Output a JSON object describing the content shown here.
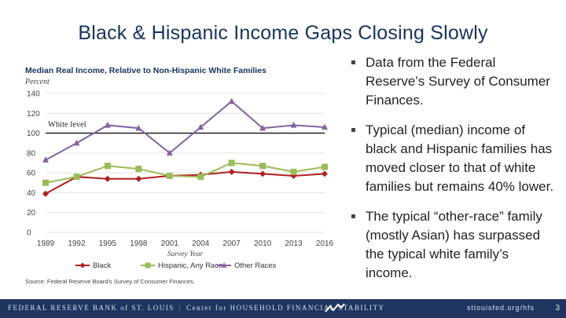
{
  "slide": {
    "title": "Black & Hispanic Income Gaps Closing Slowly",
    "page_number": "3"
  },
  "chart_data": {
    "type": "line",
    "title": "Median Real Income, Relative to Non-Hispanic White Families",
    "ylabel": "Percent",
    "xlabel": "Survey Year",
    "source": "Source: Federal Reserve Board's Survey of Consumer Finances.",
    "reference_line": {
      "label": "White level",
      "value": 100
    },
    "ylim": [
      0,
      140
    ],
    "yticks": [
      0,
      20,
      40,
      60,
      80,
      100,
      120,
      140
    ],
    "categories": [
      "1989",
      "1992",
      "1995",
      "1998",
      "2001",
      "2004",
      "2007",
      "2010",
      "2013",
      "2016"
    ],
    "series": [
      {
        "name": "Black",
        "color": "#b01f1f",
        "marker": "diamond",
        "values": [
          39,
          56,
          54,
          54,
          57,
          58,
          61,
          59,
          57,
          59
        ]
      },
      {
        "name": "Hispanic, Any Race",
        "color": "#9bbb59",
        "marker": "square",
        "values": [
          50,
          56,
          67,
          64,
          57,
          56,
          70,
          67,
          61,
          66
        ]
      },
      {
        "name": "Other Races",
        "color": "#8064a2",
        "marker": "triangle",
        "values": [
          73,
          90,
          108,
          105,
          80,
          106,
          132,
          105,
          108,
          106
        ]
      }
    ]
  },
  "bullets": [
    "Data from the Federal Reserve’s Survey of Consumer Finances.",
    "Typical (median) income of black and Hispanic families has moved closer to that of white families but remains 40% lower.",
    "The typical “other-race” family (mostly Asian) has surpassed the typical white family’s income."
  ],
  "footer": {
    "left_text": "FEDERAL RESERVE BANK of ST. LOUIS",
    "separator": "|",
    "center_text": "Center for HOUSEHOLD FINANCIAL STABILITY",
    "url": "stlouisfed.org/hfs"
  }
}
